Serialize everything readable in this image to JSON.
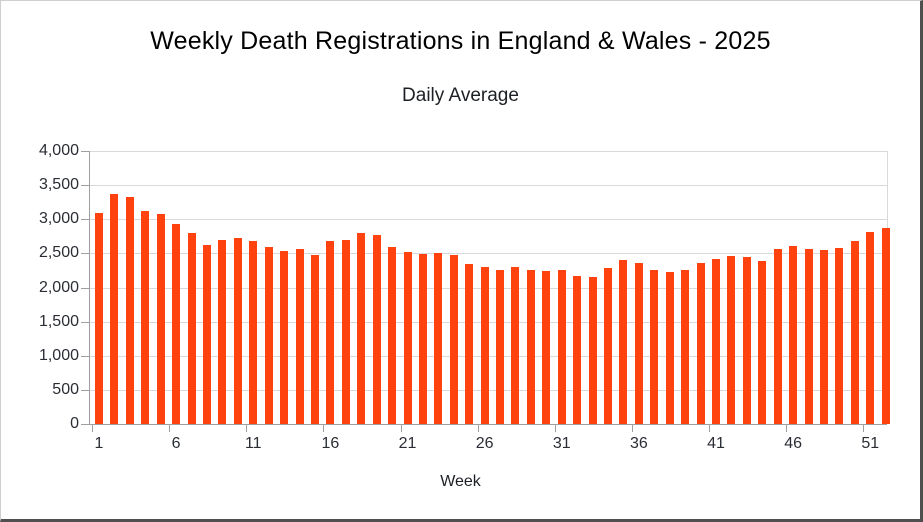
{
  "chart_data": {
    "type": "bar",
    "title": "Weekly Death Registrations in England & Wales - 2025",
    "subtitle": "Daily Average",
    "xlabel": "Week",
    "ylabel": "",
    "ylim": [
      0,
      4000
    ],
    "y_tick_step": 500,
    "y_tick_labels": [
      "0",
      "500",
      "1,000",
      "1,500",
      "2,000",
      "2,500",
      "3,000",
      "3,500",
      "4,000"
    ],
    "x_tick_weeks": [
      1,
      6,
      11,
      16,
      21,
      26,
      31,
      36,
      41,
      46,
      51
    ],
    "categories": [
      1,
      2,
      3,
      4,
      5,
      6,
      7,
      8,
      9,
      10,
      11,
      12,
      13,
      14,
      15,
      16,
      17,
      18,
      19,
      20,
      21,
      22,
      23,
      24,
      25,
      26,
      27,
      28,
      29,
      30,
      31,
      32,
      33,
      34,
      35,
      36,
      37,
      38,
      39,
      40,
      41,
      42,
      43,
      44,
      45,
      46,
      47,
      48,
      49,
      50,
      51,
      52
    ],
    "series": [
      {
        "name": "Daily Average",
        "values": [
          3090,
          3375,
          3320,
          3120,
          3070,
          2935,
          2795,
          2630,
          2695,
          2720,
          2675,
          2590,
          2535,
          2570,
          2480,
          2680,
          2700,
          2805,
          2770,
          2590,
          2525,
          2485,
          2500,
          2475,
          2350,
          2295,
          2250,
          2295,
          2260,
          2235,
          2250,
          2170,
          2155,
          2290,
          2410,
          2355,
          2255,
          2220,
          2255,
          2355,
          2415,
          2465,
          2450,
          2390,
          2560,
          2605,
          2565,
          2550,
          2585,
          2680,
          2815,
          2865
        ]
      }
    ],
    "legend": "none",
    "grid": "horizontal",
    "colors": {
      "bar": "#FF420E",
      "gridline": "#d9d9d9",
      "axis": "#9f9f9f",
      "title_text": "#000000",
      "label_text": "#2a2e34"
    }
  }
}
